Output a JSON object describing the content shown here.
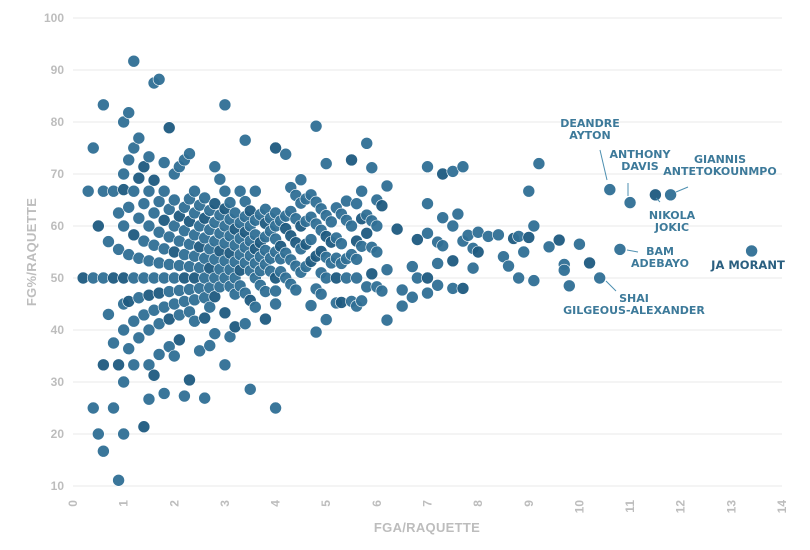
{
  "chart_data": {
    "type": "scatter",
    "xlabel": "FGA/RAQUETTE",
    "ylabel": "FG%/RAQUETTE",
    "xlim": [
      0,
      14
    ],
    "ylim": [
      10,
      100
    ],
    "xticks": [
      "0",
      "1",
      "2",
      "3",
      "4",
      "5",
      "6",
      "7",
      "8",
      "9",
      "10",
      "11",
      "12",
      "13",
      "14"
    ],
    "yticks": [
      "10",
      "20",
      "30",
      "40",
      "50",
      "60",
      "70",
      "80",
      "90",
      "100"
    ],
    "grid": "horizontal",
    "colors": {
      "point": "#2f6f95",
      "point_dark": "#1d5a80",
      "annotation": "#3d7a9a",
      "grid": "#e8e8e8",
      "axis_text": "#bdbdbd"
    },
    "points": [
      [
        0.2,
        50
      ],
      [
        0.3,
        66.7
      ],
      [
        0.4,
        75
      ],
      [
        0.4,
        50
      ],
      [
        0.4,
        25
      ],
      [
        0.5,
        60
      ],
      [
        0.5,
        20
      ],
      [
        0.6,
        83.3
      ],
      [
        0.6,
        66.7
      ],
      [
        0.6,
        50
      ],
      [
        0.6,
        33.3
      ],
      [
        0.6,
        16.7
      ],
      [
        0.7,
        57
      ],
      [
        0.7,
        43
      ],
      [
        0.8,
        66.7
      ],
      [
        0.8,
        50
      ],
      [
        0.8,
        25
      ],
      [
        0.8,
        37.5
      ],
      [
        0.9,
        62.5
      ],
      [
        0.9,
        55.5
      ],
      [
        0.9,
        33.3
      ],
      [
        0.9,
        11.1
      ],
      [
        1.0,
        80
      ],
      [
        1.0,
        70
      ],
      [
        1.0,
        60
      ],
      [
        1.0,
        50
      ],
      [
        1.0,
        40
      ],
      [
        1.0,
        30
      ],
      [
        1.0,
        20
      ],
      [
        1.0,
        45
      ],
      [
        1.0,
        67
      ],
      [
        1.1,
        81.8
      ],
      [
        1.1,
        72.7
      ],
      [
        1.1,
        63.6
      ],
      [
        1.1,
        54.5
      ],
      [
        1.1,
        45.5
      ],
      [
        1.1,
        36.4
      ],
      [
        1.2,
        91.7
      ],
      [
        1.2,
        75
      ],
      [
        1.2,
        66.7
      ],
      [
        1.2,
        58.3
      ],
      [
        1.2,
        50
      ],
      [
        1.2,
        41.7
      ],
      [
        1.2,
        33.3
      ],
      [
        1.3,
        76.9
      ],
      [
        1.3,
        69.2
      ],
      [
        1.3,
        61.5
      ],
      [
        1.3,
        53.8
      ],
      [
        1.3,
        46.2
      ],
      [
        1.3,
        38.5
      ],
      [
        1.4,
        71.4
      ],
      [
        1.4,
        64.3
      ],
      [
        1.4,
        57.1
      ],
      [
        1.4,
        50
      ],
      [
        1.4,
        42.9
      ],
      [
        1.4,
        21.4
      ],
      [
        1.5,
        73.3
      ],
      [
        1.5,
        66.7
      ],
      [
        1.5,
        60
      ],
      [
        1.5,
        53.3
      ],
      [
        1.5,
        46.7
      ],
      [
        1.5,
        40
      ],
      [
        1.5,
        33.3
      ],
      [
        1.5,
        26.7
      ],
      [
        1.6,
        87.5
      ],
      [
        1.6,
        68.8
      ],
      [
        1.6,
        62.5
      ],
      [
        1.6,
        56.3
      ],
      [
        1.6,
        50
      ],
      [
        1.6,
        43.8
      ],
      [
        1.6,
        31.3
      ],
      [
        1.7,
        88.2
      ],
      [
        1.7,
        64.7
      ],
      [
        1.7,
        58.8
      ],
      [
        1.7,
        52.9
      ],
      [
        1.7,
        47.1
      ],
      [
        1.7,
        41.2
      ],
      [
        1.7,
        35.3
      ],
      [
        1.8,
        72.2
      ],
      [
        1.8,
        66.7
      ],
      [
        1.8,
        61.1
      ],
      [
        1.8,
        55.6
      ],
      [
        1.8,
        50
      ],
      [
        1.8,
        44.4
      ],
      [
        1.8,
        27.8
      ],
      [
        1.9,
        78.9
      ],
      [
        1.9,
        63.2
      ],
      [
        1.9,
        57.9
      ],
      [
        1.9,
        52.6
      ],
      [
        1.9,
        47.4
      ],
      [
        1.9,
        42.1
      ],
      [
        1.9,
        36.8
      ],
      [
        2.0,
        70
      ],
      [
        2.0,
        65
      ],
      [
        2.0,
        60
      ],
      [
        2.0,
        55
      ],
      [
        2.0,
        50
      ],
      [
        2.0,
        45
      ],
      [
        2.0,
        35
      ],
      [
        2.1,
        71.4
      ],
      [
        2.1,
        61.9
      ],
      [
        2.1,
        57.1
      ],
      [
        2.1,
        52.4
      ],
      [
        2.1,
        47.6
      ],
      [
        2.1,
        42.9
      ],
      [
        2.1,
        38.1
      ],
      [
        2.2,
        72.7
      ],
      [
        2.2,
        63.6
      ],
      [
        2.2,
        59.1
      ],
      [
        2.2,
        54.5
      ],
      [
        2.2,
        50
      ],
      [
        2.2,
        45.5
      ],
      [
        2.2,
        27.3
      ],
      [
        2.3,
        73.9
      ],
      [
        2.3,
        65.2
      ],
      [
        2.3,
        60.9
      ],
      [
        2.3,
        56.5
      ],
      [
        2.3,
        52.2
      ],
      [
        2.3,
        47.8
      ],
      [
        2.3,
        43.5
      ],
      [
        2.3,
        30.4
      ],
      [
        2.4,
        66.7
      ],
      [
        2.4,
        62.5
      ],
      [
        2.4,
        58.3
      ],
      [
        2.4,
        54.2
      ],
      [
        2.4,
        50
      ],
      [
        2.4,
        45.8
      ],
      [
        2.4,
        41.7
      ],
      [
        2.5,
        64
      ],
      [
        2.5,
        60
      ],
      [
        2.5,
        56
      ],
      [
        2.5,
        52
      ],
      [
        2.5,
        48
      ],
      [
        2.5,
        36
      ],
      [
        2.6,
        65.4
      ],
      [
        2.6,
        61.5
      ],
      [
        2.6,
        57.7
      ],
      [
        2.6,
        53.8
      ],
      [
        2.6,
        50
      ],
      [
        2.6,
        46.2
      ],
      [
        2.6,
        42.3
      ],
      [
        2.6,
        26.9
      ],
      [
        2.7,
        63
      ],
      [
        2.7,
        59.3
      ],
      [
        2.7,
        55.6
      ],
      [
        2.7,
        51.9
      ],
      [
        2.7,
        48.1
      ],
      [
        2.7,
        44.4
      ],
      [
        2.7,
        37
      ],
      [
        2.8,
        71.4
      ],
      [
        2.8,
        64.3
      ],
      [
        2.8,
        60.7
      ],
      [
        2.8,
        57.1
      ],
      [
        2.8,
        53.6
      ],
      [
        2.8,
        50
      ],
      [
        2.8,
        46.4
      ],
      [
        2.8,
        39.3
      ],
      [
        2.9,
        69
      ],
      [
        2.9,
        62.1
      ],
      [
        2.9,
        58.6
      ],
      [
        2.9,
        55.2
      ],
      [
        2.9,
        51.7
      ],
      [
        2.9,
        48.3
      ],
      [
        3.0,
        83.3
      ],
      [
        3.0,
        66.7
      ],
      [
        3.0,
        63.3
      ],
      [
        3.0,
        60
      ],
      [
        3.0,
        56.7
      ],
      [
        3.0,
        53.3
      ],
      [
        3.0,
        50
      ],
      [
        3.0,
        43.3
      ],
      [
        3.0,
        33.3
      ],
      [
        3.1,
        64.5
      ],
      [
        3.1,
        61.3
      ],
      [
        3.1,
        58.1
      ],
      [
        3.1,
        54.8
      ],
      [
        3.1,
        51.6
      ],
      [
        3.1,
        48.4
      ],
      [
        3.1,
        38.7
      ],
      [
        3.2,
        62.5
      ],
      [
        3.2,
        59.4
      ],
      [
        3.2,
        56.3
      ],
      [
        3.2,
        53.1
      ],
      [
        3.2,
        50
      ],
      [
        3.2,
        46.9
      ],
      [
        3.2,
        40.6
      ],
      [
        3.3,
        66.7
      ],
      [
        3.3,
        60.6
      ],
      [
        3.3,
        57.6
      ],
      [
        3.3,
        54.5
      ],
      [
        3.3,
        51.5
      ],
      [
        3.3,
        48.5
      ],
      [
        3.4,
        76.5
      ],
      [
        3.4,
        64.7
      ],
      [
        3.4,
        61.8
      ],
      [
        3.4,
        58.8
      ],
      [
        3.4,
        55.9
      ],
      [
        3.4,
        52.9
      ],
      [
        3.4,
        47.1
      ],
      [
        3.4,
        41.2
      ],
      [
        3.5,
        62.9
      ],
      [
        3.5,
        60
      ],
      [
        3.5,
        57.1
      ],
      [
        3.5,
        54.3
      ],
      [
        3.5,
        51.4
      ],
      [
        3.5,
        45.7
      ],
      [
        3.5,
        28.6
      ],
      [
        3.6,
        66.7
      ],
      [
        3.6,
        61.1
      ],
      [
        3.6,
        58.3
      ],
      [
        3.6,
        55.6
      ],
      [
        3.6,
        52.8
      ],
      [
        3.6,
        50
      ],
      [
        3.6,
        44.4
      ],
      [
        3.7,
        62.2
      ],
      [
        3.7,
        56.8
      ],
      [
        3.7,
        54.1
      ],
      [
        3.7,
        51.4
      ],
      [
        3.7,
        48.6
      ],
      [
        3.8,
        63.2
      ],
      [
        3.8,
        60.5
      ],
      [
        3.8,
        57.9
      ],
      [
        3.8,
        55.3
      ],
      [
        3.8,
        52.6
      ],
      [
        3.8,
        47.4
      ],
      [
        3.8,
        42.1
      ],
      [
        3.9,
        61.5
      ],
      [
        3.9,
        59
      ],
      [
        3.9,
        53.8
      ],
      [
        3.9,
        51.3
      ],
      [
        4.0,
        75
      ],
      [
        4.0,
        62.5
      ],
      [
        4.0,
        60
      ],
      [
        4.0,
        57.5
      ],
      [
        4.0,
        55
      ],
      [
        4.0,
        50
      ],
      [
        4.0,
        47.5
      ],
      [
        4.0,
        45
      ],
      [
        4.0,
        25
      ],
      [
        4.1,
        61
      ],
      [
        4.1,
        56.1
      ],
      [
        4.1,
        53.7
      ],
      [
        4.1,
        51.2
      ],
      [
        4.2,
        73.8
      ],
      [
        4.2,
        61.9
      ],
      [
        4.2,
        59.5
      ],
      [
        4.2,
        54.8
      ],
      [
        4.2,
        50
      ],
      [
        4.3,
        67.4
      ],
      [
        4.3,
        62.8
      ],
      [
        4.3,
        58.1
      ],
      [
        4.3,
        53.5
      ],
      [
        4.3,
        48.8
      ],
      [
        4.4,
        65.9
      ],
      [
        4.4,
        61.4
      ],
      [
        4.4,
        56.8
      ],
      [
        4.4,
        52.3
      ],
      [
        4.4,
        47.7
      ],
      [
        4.5,
        68.9
      ],
      [
        4.5,
        64.4
      ],
      [
        4.5,
        60
      ],
      [
        4.5,
        55.6
      ],
      [
        4.5,
        51.1
      ],
      [
        4.6,
        65.2
      ],
      [
        4.6,
        60.9
      ],
      [
        4.6,
        56.5
      ],
      [
        4.6,
        52.2
      ],
      [
        4.7,
        66
      ],
      [
        4.7,
        61.7
      ],
      [
        4.7,
        57.4
      ],
      [
        4.7,
        53.2
      ],
      [
        4.7,
        44.7
      ],
      [
        4.8,
        79.2
      ],
      [
        4.8,
        64.6
      ],
      [
        4.8,
        60.4
      ],
      [
        4.8,
        54.2
      ],
      [
        4.8,
        47.9
      ],
      [
        4.8,
        39.6
      ],
      [
        4.9,
        63.3
      ],
      [
        4.9,
        59.2
      ],
      [
        4.9,
        55.1
      ],
      [
        4.9,
        51
      ],
      [
        4.9,
        46.9
      ],
      [
        5.0,
        72
      ],
      [
        5.0,
        62
      ],
      [
        5.0,
        58
      ],
      [
        5.0,
        54
      ],
      [
        5.0,
        50
      ],
      [
        5.0,
        42
      ],
      [
        5.1,
        60.8
      ],
      [
        5.1,
        56.9
      ],
      [
        5.1,
        52.9
      ],
      [
        5.2,
        63.5
      ],
      [
        5.2,
        57.7
      ],
      [
        5.2,
        53.8
      ],
      [
        5.2,
        50
      ],
      [
        5.2,
        45.2
      ],
      [
        5.3,
        62.3
      ],
      [
        5.3,
        56.6
      ],
      [
        5.3,
        52.8
      ],
      [
        5.3,
        45.3
      ],
      [
        5.4,
        64.8
      ],
      [
        5.4,
        61.1
      ],
      [
        5.4,
        53.7
      ],
      [
        5.4,
        50
      ],
      [
        5.5,
        72.7
      ],
      [
        5.5,
        60
      ],
      [
        5.5,
        54.5
      ],
      [
        5.5,
        45.5
      ],
      [
        5.6,
        64.3
      ],
      [
        5.6,
        57.1
      ],
      [
        5.6,
        53.6
      ],
      [
        5.6,
        50
      ],
      [
        5.6,
        44.6
      ],
      [
        5.7,
        66.7
      ],
      [
        5.7,
        61.4
      ],
      [
        5.7,
        56.1
      ],
      [
        5.7,
        45.6
      ],
      [
        5.8,
        75.9
      ],
      [
        5.8,
        62.1
      ],
      [
        5.8,
        58.6
      ],
      [
        5.8,
        48.3
      ],
      [
        5.9,
        71.2
      ],
      [
        5.9,
        61
      ],
      [
        5.9,
        55.9
      ],
      [
        5.9,
        50.8
      ],
      [
        6.0,
        65
      ],
      [
        6.0,
        60
      ],
      [
        6.0,
        55
      ],
      [
        6.0,
        48.3
      ],
      [
        6.1,
        63.9
      ],
      [
        6.1,
        47.5
      ],
      [
        6.2,
        67.7
      ],
      [
        6.2,
        51.6
      ],
      [
        6.2,
        41.9
      ],
      [
        6.4,
        59.4
      ],
      [
        6.5,
        47.7
      ],
      [
        6.5,
        44.6
      ],
      [
        6.7,
        52.2
      ],
      [
        6.7,
        46.3
      ],
      [
        6.8,
        57.4
      ],
      [
        6.8,
        50
      ],
      [
        7.0,
        71.4
      ],
      [
        7.0,
        64.3
      ],
      [
        7.0,
        58.6
      ],
      [
        7.0,
        50
      ],
      [
        7.0,
        47.1
      ],
      [
        7.2,
        56.9
      ],
      [
        7.2,
        52.8
      ],
      [
        7.2,
        48.6
      ],
      [
        7.3,
        70
      ],
      [
        7.3,
        61.6
      ],
      [
        7.3,
        56.2
      ],
      [
        7.5,
        70.5
      ],
      [
        7.5,
        60
      ],
      [
        7.5,
        53.3
      ],
      [
        7.5,
        48
      ],
      [
        7.6,
        62.3
      ],
      [
        7.7,
        71.4
      ],
      [
        7.7,
        57.1
      ],
      [
        7.7,
        48
      ],
      [
        7.8,
        58.2
      ],
      [
        7.9,
        55.7
      ],
      [
        7.9,
        51.9
      ],
      [
        8.0,
        58.8
      ],
      [
        8.0,
        55
      ],
      [
        8.2,
        58
      ],
      [
        8.4,
        58.3
      ],
      [
        8.5,
        54.1
      ],
      [
        8.6,
        52.3
      ],
      [
        8.7,
        57.6
      ],
      [
        8.8,
        50
      ],
      [
        8.8,
        58
      ],
      [
        8.9,
        55
      ],
      [
        9.0,
        66.7
      ],
      [
        9.0,
        57.8
      ],
      [
        9.1,
        60
      ],
      [
        9.1,
        49.5
      ],
      [
        9.2,
        72
      ],
      [
        9.4,
        56
      ],
      [
        9.6,
        57.3
      ],
      [
        9.7,
        52.6
      ],
      [
        9.7,
        51.5
      ],
      [
        9.8,
        48.5
      ],
      [
        10.0,
        56.5
      ],
      [
        10.2,
        52.9
      ],
      [
        10.4,
        50
      ],
      [
        10.6,
        67
      ],
      [
        10.8,
        55.5
      ],
      [
        11.0,
        64.5
      ],
      [
        11.5,
        66
      ],
      [
        11.8,
        66
      ],
      [
        13.4,
        55.2
      ]
    ],
    "annotations": [
      {
        "lines": [
          "DEANDRE",
          "AYTON"
        ],
        "x": 10.6,
        "y": 67
      },
      {
        "lines": [
          "ANTHONY",
          "DAVIS"
        ],
        "x": 11.0,
        "y": 64.5
      },
      {
        "lines": [
          "GIANNIS",
          "ANTETOKOUNMPO"
        ],
        "x": 11.8,
        "y": 66
      },
      {
        "lines": [
          "NIKOLA",
          "JOKIC"
        ],
        "x": 11.5,
        "y": 66
      },
      {
        "lines": [
          "BAM",
          "ADEBAYO"
        ],
        "x": 10.8,
        "y": 55.5
      },
      {
        "lines": [
          "JA MORANT"
        ],
        "x": 13.4,
        "y": 55.2
      },
      {
        "lines": [
          "SHAI",
          "GILGEOUS-ALEXANDER"
        ],
        "x": 10.4,
        "y": 50
      }
    ]
  }
}
